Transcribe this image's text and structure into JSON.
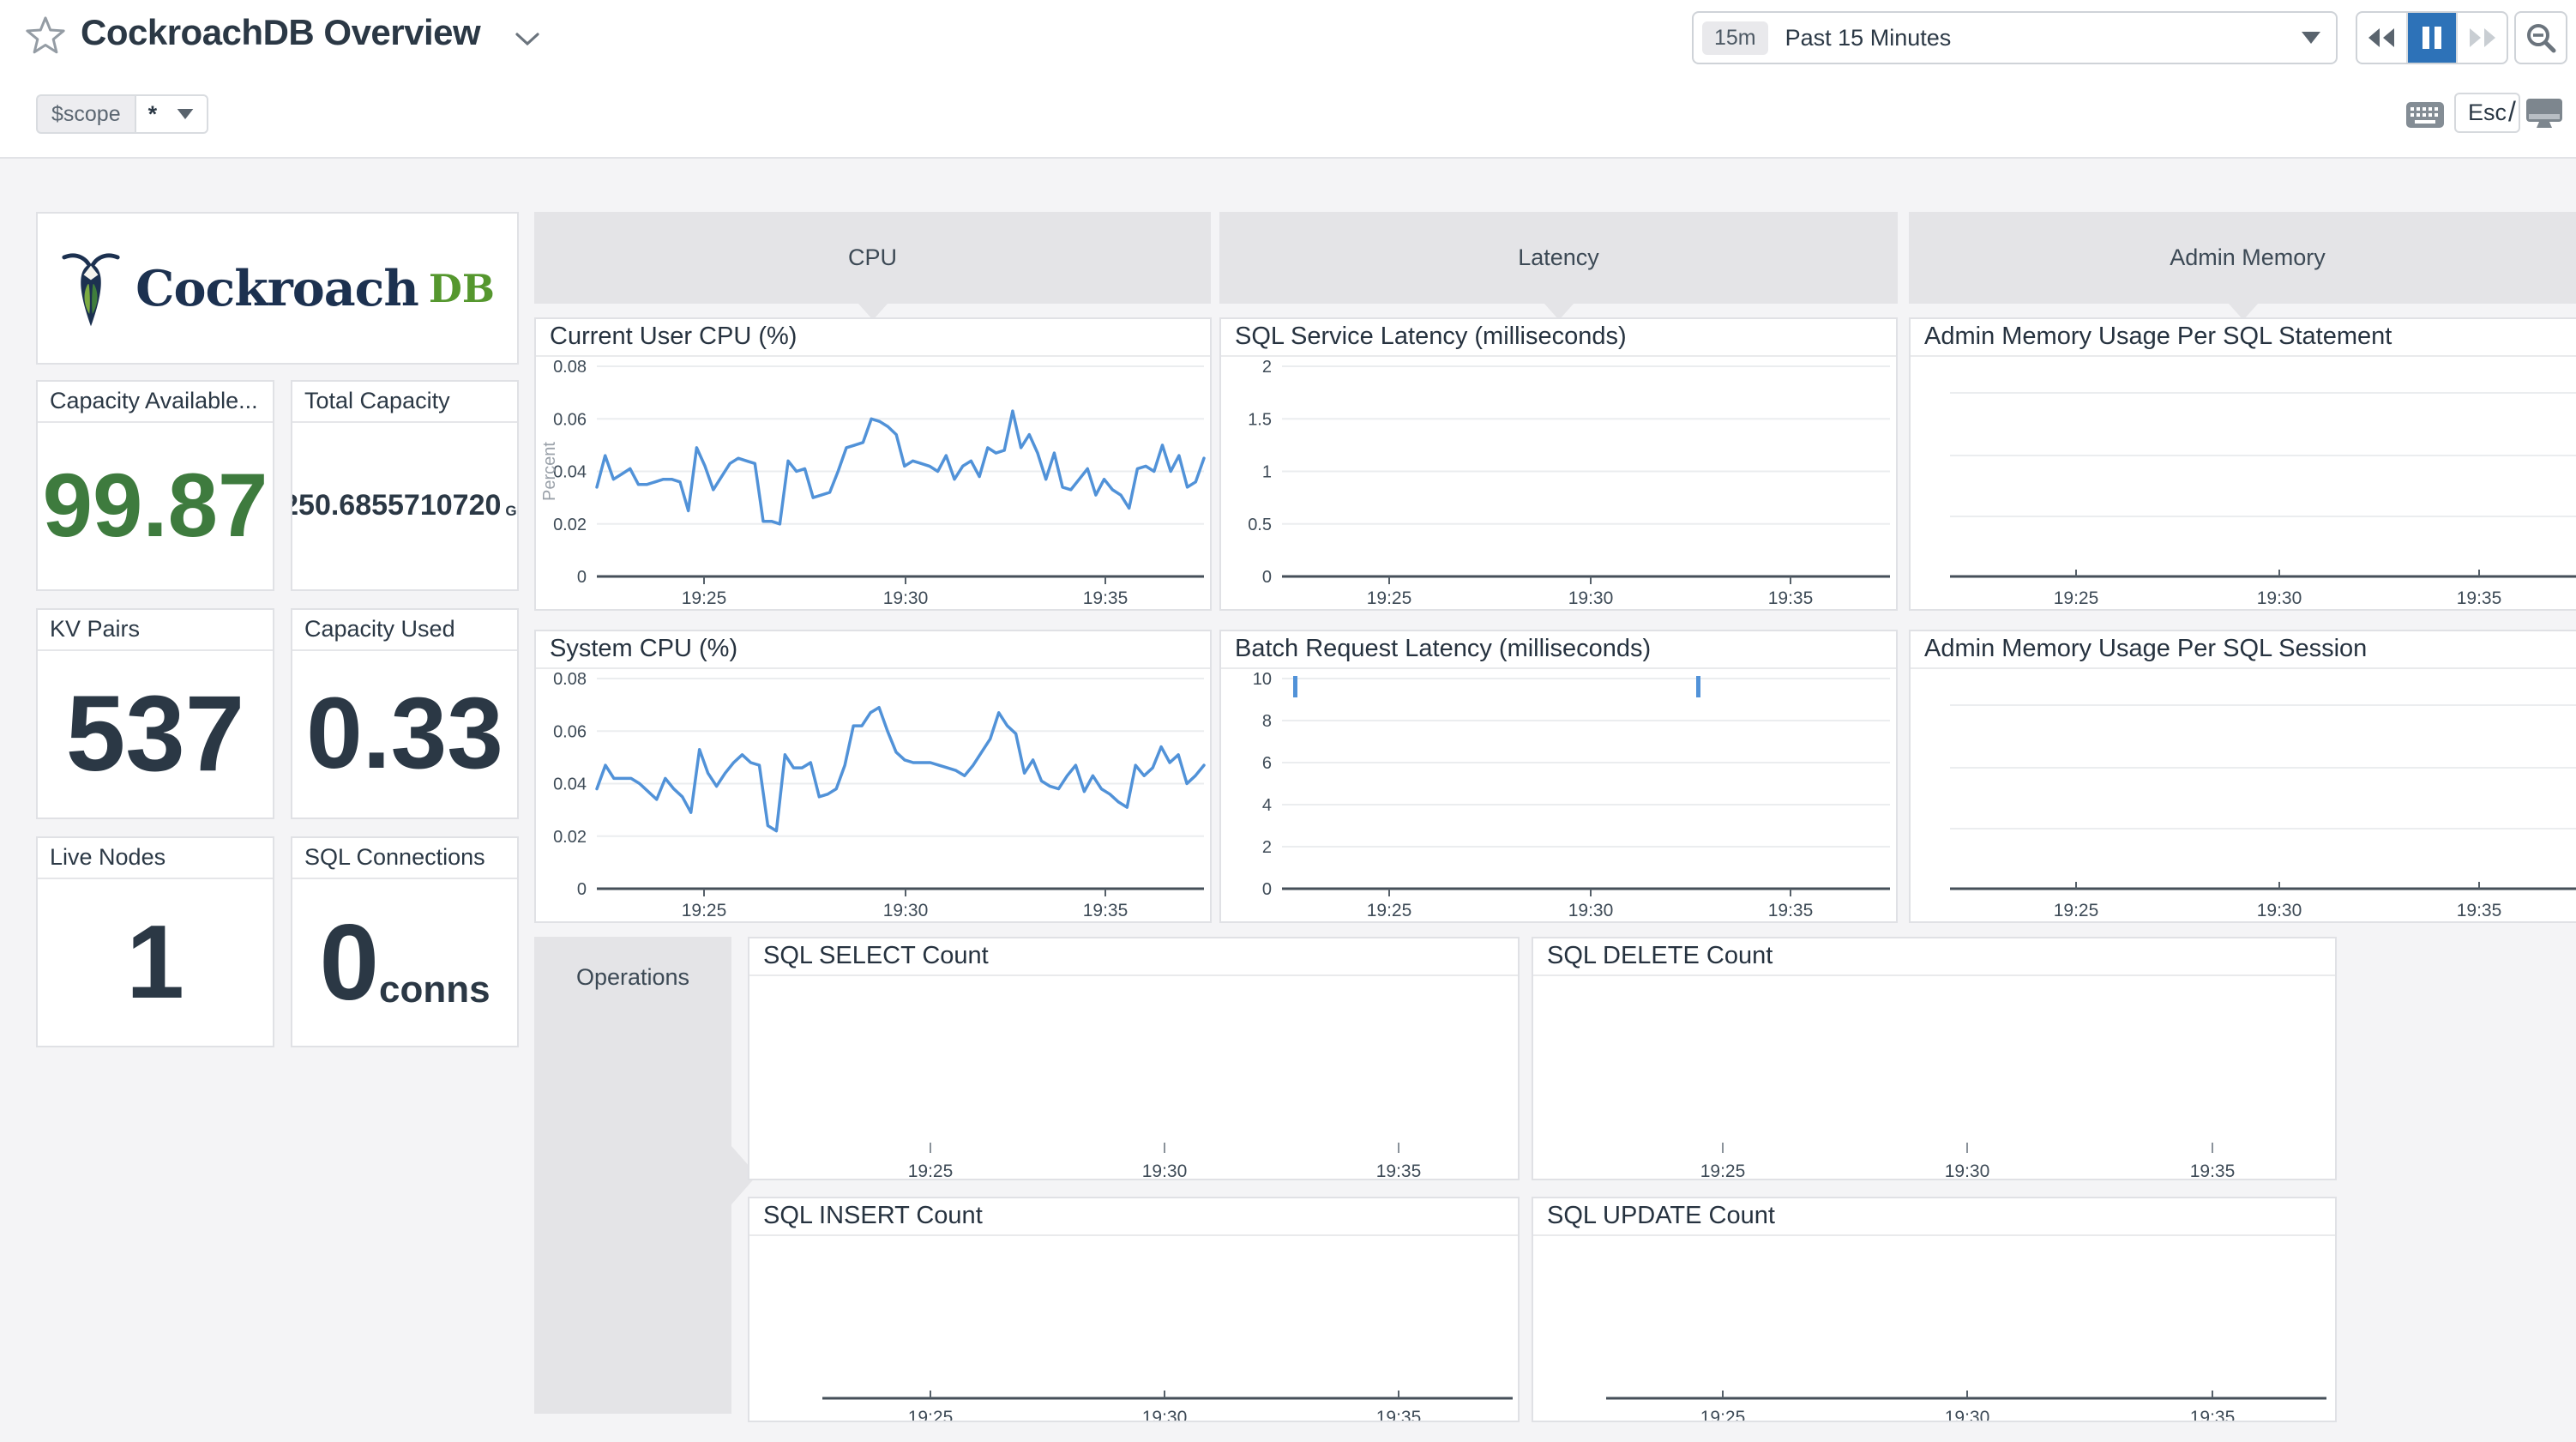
{
  "colors": {
    "accent_blue": "#2d72b8",
    "line_blue": "#5192d8",
    "stat_green": "#3e7b3e",
    "text_dark": "#2b3845",
    "logo_navy": "#1c3150",
    "logo_green": "#55972e"
  },
  "header": {
    "title": "CockroachDB Overview",
    "time": {
      "badge": "15m",
      "label": "Past 15 Minutes"
    },
    "playback": {
      "state": "paused"
    },
    "shortcuts": {
      "esc": "Esc",
      "slash": "/"
    }
  },
  "template_vars": {
    "name": "$scope",
    "value": "*"
  },
  "logo": {
    "brand": "Cockroach",
    "suffix": "DB"
  },
  "stats": [
    {
      "title": "Capacity Available...",
      "value": "99.87"
    },
    {
      "title": "Total Capacity",
      "value": "250.6855710720",
      "unit": "GB"
    },
    {
      "title": "KV Pairs",
      "value": "537"
    },
    {
      "title": "Capacity Used",
      "value": "0.33"
    },
    {
      "title": "Live Nodes",
      "value": "1"
    },
    {
      "title": "SQL Connections",
      "value": "0",
      "unit": "conns"
    }
  ],
  "groups": {
    "cpu": "CPU",
    "latency": "Latency",
    "admin_memory": "Admin Memory",
    "operations": "Operations"
  },
  "charts": {
    "x_ticks": [
      "19:25",
      "19:30",
      "19:35"
    ],
    "user_cpu": {
      "title": "Current User CPU (%)",
      "type": "line",
      "y_axis_label": "Percent",
      "y_ticks": [
        "0.08",
        "0.06",
        "0.04",
        "0.02",
        "0"
      ],
      "y_max": 0.08,
      "series": [
        0.034,
        0.046,
        0.037,
        0.039,
        0.041,
        0.035,
        0.035,
        0.036,
        0.037,
        0.037,
        0.036,
        0.025,
        0.049,
        0.042,
        0.033,
        0.038,
        0.043,
        0.045,
        0.044,
        0.043,
        0.021,
        0.021,
        0.02,
        0.044,
        0.04,
        0.041,
        0.03,
        0.031,
        0.032,
        0.04,
        0.049,
        0.05,
        0.051,
        0.06,
        0.059,
        0.057,
        0.054,
        0.042,
        0.044,
        0.043,
        0.042,
        0.04,
        0.046,
        0.037,
        0.042,
        0.044,
        0.038,
        0.049,
        0.047,
        0.048,
        0.063,
        0.049,
        0.054,
        0.047,
        0.037,
        0.047,
        0.034,
        0.033,
        0.037,
        0.041,
        0.031,
        0.037,
        0.033,
        0.031,
        0.026,
        0.041,
        0.042,
        0.04,
        0.05,
        0.04,
        0.046,
        0.034,
        0.036,
        0.045
      ]
    },
    "system_cpu": {
      "title": "System CPU (%)",
      "type": "line",
      "y_ticks": [
        "0.08",
        "0.06",
        "0.04",
        "0.02",
        "0"
      ],
      "y_max": 0.08,
      "series": [
        0.038,
        0.047,
        0.042,
        0.042,
        0.042,
        0.04,
        0.037,
        0.034,
        0.042,
        0.038,
        0.035,
        0.029,
        0.053,
        0.044,
        0.039,
        0.044,
        0.048,
        0.051,
        0.048,
        0.047,
        0.024,
        0.022,
        0.051,
        0.046,
        0.046,
        0.048,
        0.035,
        0.036,
        0.038,
        0.047,
        0.062,
        0.062,
        0.067,
        0.069,
        0.06,
        0.052,
        0.049,
        0.048,
        0.048,
        0.048,
        0.047,
        0.046,
        0.045,
        0.043,
        0.047,
        0.052,
        0.057,
        0.067,
        0.062,
        0.059,
        0.044,
        0.049,
        0.041,
        0.039,
        0.038,
        0.043,
        0.047,
        0.037,
        0.043,
        0.038,
        0.036,
        0.033,
        0.031,
        0.047,
        0.043,
        0.046,
        0.054,
        0.048,
        0.051,
        0.04,
        0.043,
        0.047
      ]
    },
    "sql_latency": {
      "title": "SQL Service Latency (milliseconds)",
      "type": "line",
      "y_ticks": [
        "2",
        "1.5",
        "1",
        "0.5",
        "0"
      ],
      "y_max": 2,
      "series": null
    },
    "batch_latency": {
      "title": "Batch Request Latency (milliseconds)",
      "type": "line",
      "y_ticks": [
        "10",
        "8",
        "6",
        "4",
        "2",
        "0"
      ],
      "y_max": 10,
      "series": null,
      "spikes_at": [
        "19:22",
        "19:32"
      ],
      "spike_value": 10
    },
    "admin_stmt": {
      "title": "Admin Memory Usage Per SQL Statement",
      "type": "line",
      "series": null
    },
    "admin_sess": {
      "title": "Admin Memory Usage Per SQL Session",
      "type": "line",
      "series": null
    },
    "sql_select": {
      "title": "SQL SELECT Count",
      "type": "line",
      "series": null
    },
    "sql_delete": {
      "title": "SQL DELETE Count",
      "type": "line",
      "series": null
    },
    "sql_insert": {
      "title": "SQL INSERT Count",
      "type": "line",
      "series": null
    },
    "sql_update": {
      "title": "SQL UPDATE Count",
      "type": "line",
      "series": null
    }
  }
}
